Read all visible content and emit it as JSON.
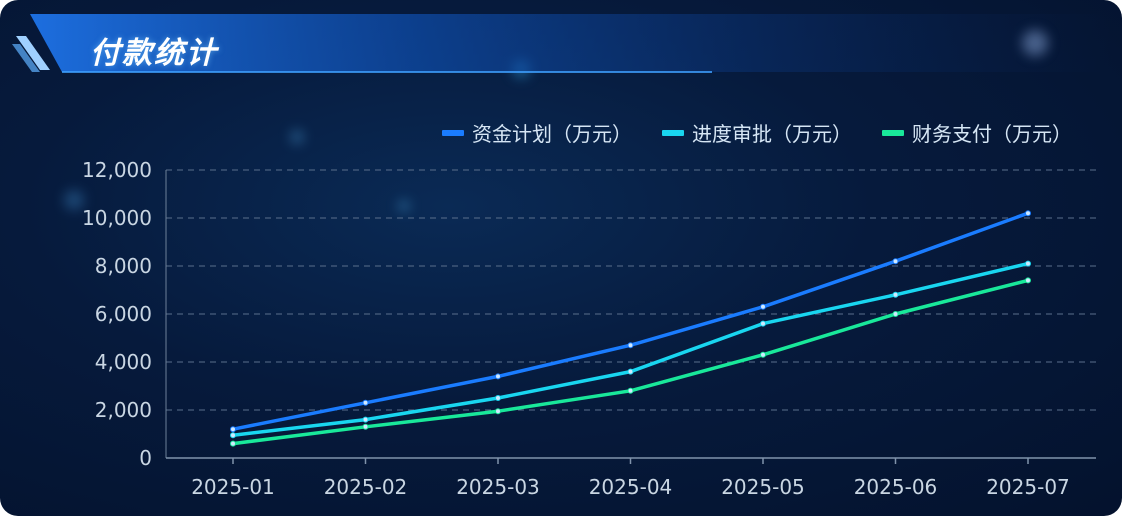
{
  "header": {
    "title": "付款统计"
  },
  "colors": {
    "plan": "#1a7cff",
    "approval": "#19d6f0",
    "payment": "#19e89a"
  },
  "chart_data": {
    "type": "line",
    "categories": [
      "2025-01",
      "2025-02",
      "2025-03",
      "2025-04",
      "2025-05",
      "2025-06",
      "2025-07"
    ],
    "series": [
      {
        "name": "资金计划（万元）",
        "values": [
          1200,
          2300,
          3400,
          4700,
          6300,
          8200,
          10200
        ]
      },
      {
        "name": "进度审批（万元）",
        "values": [
          950,
          1600,
          2500,
          3600,
          5600,
          6800,
          8100
        ]
      },
      {
        "name": "财务支付（万元）",
        "values": [
          600,
          1300,
          1950,
          2800,
          4300,
          6000,
          7400
        ]
      }
    ],
    "yticks": [
      "0",
      "2,000",
      "4,000",
      "6,000",
      "8,000",
      "10,000",
      "12,000"
    ],
    "ylim": [
      0,
      12000
    ],
    "grid": true,
    "legend_position": "top-right"
  }
}
